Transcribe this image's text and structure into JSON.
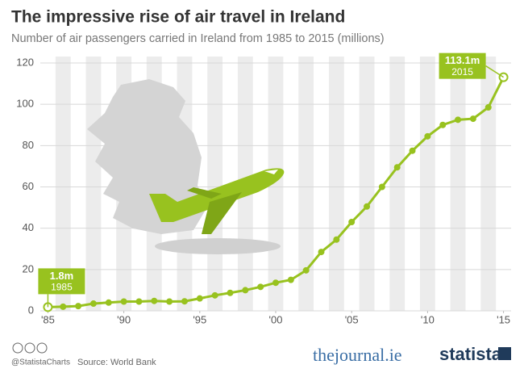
{
  "chart_data": {
    "type": "line",
    "title": "The impressive rise of air travel in Ireland",
    "subtitle": "Number of air passengers carried in Ireland from 1985 to 2015 (millions)",
    "x": [
      1985,
      1986,
      1987,
      1988,
      1989,
      1990,
      1991,
      1992,
      1993,
      1994,
      1995,
      1996,
      1997,
      1998,
      1999,
      2000,
      2001,
      2002,
      2003,
      2004,
      2005,
      2006,
      2007,
      2008,
      2009,
      2010,
      2011,
      2012,
      2013,
      2014,
      2015
    ],
    "series": [
      {
        "name": "Air passengers",
        "color": "#98c21f",
        "values": [
          1.8,
          2.0,
          2.3,
          3.5,
          4.0,
          4.5,
          4.5,
          4.8,
          4.5,
          4.6,
          6.0,
          7.5,
          8.7,
          10.0,
          11.6,
          13.6,
          15.0,
          19.6,
          28.5,
          34.5,
          43.0,
          50.5,
          60.0,
          69.5,
          77.5,
          84.5,
          90.0,
          92.5,
          93.0,
          98.5,
          113.1
        ]
      }
    ],
    "xlim": [
      1984.5,
      2015.5
    ],
    "xticks": [
      {
        "value": 1985,
        "label": "'85"
      },
      {
        "value": 1990,
        "label": "'90"
      },
      {
        "value": 1995,
        "label": "'95"
      },
      {
        "value": 2000,
        "label": "'00"
      },
      {
        "value": 2005,
        "label": "'05"
      },
      {
        "value": 2010,
        "label": "'10"
      },
      {
        "value": 2015,
        "label": "'15"
      }
    ],
    "ylim": [
      0,
      120
    ],
    "yticks": [
      0,
      20,
      40,
      60,
      80,
      100,
      120
    ],
    "grid": true,
    "annotations": [
      {
        "index": 0,
        "text": "1.8m",
        "subtext": "1985"
      },
      {
        "index": 30,
        "text": "113.1m",
        "subtext": "2015"
      }
    ],
    "footer": {
      "handle": "@StatistaCharts",
      "source": "Source: World Bank",
      "partner": "thejournal.ie",
      "brand": "statista"
    }
  }
}
